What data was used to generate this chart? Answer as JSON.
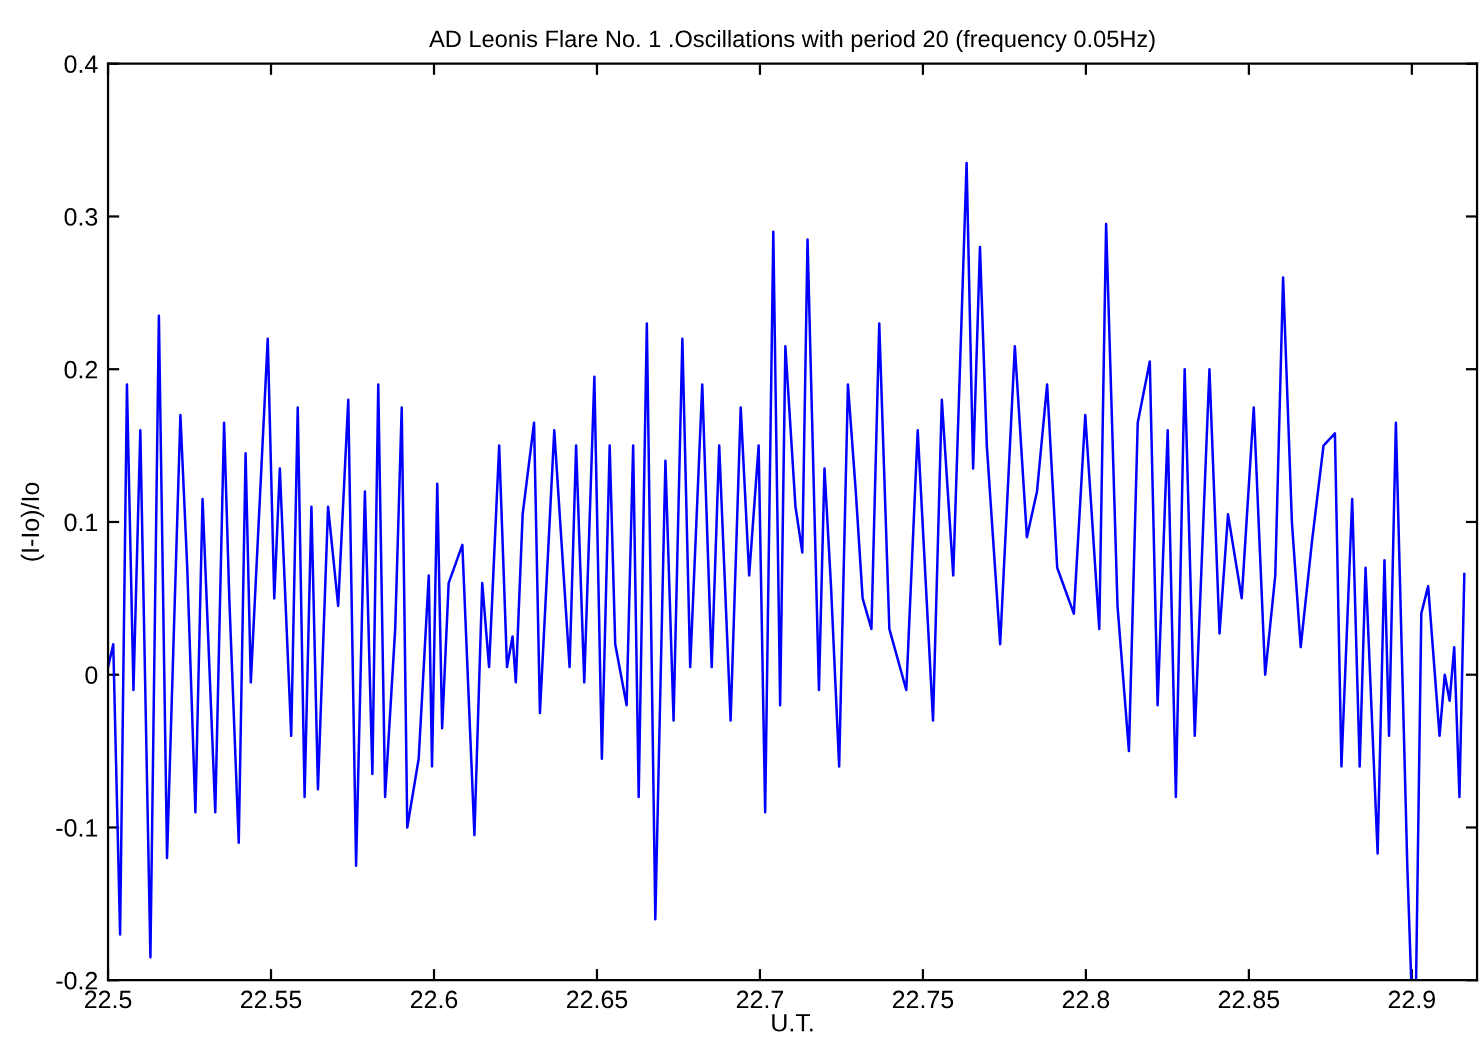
{
  "chart_data": {
    "type": "line",
    "title": "AD Leonis Flare No. 1 .Oscillations with period 20 (frequency 0.05Hz)",
    "xlabel": "U.T.",
    "ylabel": "(I-Io)/Io",
    "x": [
      22.5,
      22.5016,
      22.5037,
      22.5058,
      22.5078,
      22.5099,
      22.513,
      22.5156,
      22.5181,
      22.5222,
      22.5243,
      22.5268,
      22.529,
      22.5329,
      22.5356,
      22.5372,
      22.5401,
      22.5422,
      22.5438,
      22.549,
      22.551,
      22.5527,
      22.5562,
      22.5582,
      22.5603,
      22.5624,
      22.5644,
      22.5675,
      22.5706,
      22.5737,
      22.5761,
      22.5788,
      22.5811,
      22.5829,
      22.585,
      22.5881,
      22.5901,
      22.5918,
      22.5953,
      22.5984,
      22.5994,
      22.601,
      22.6025,
      22.6045,
      22.6087,
      22.6124,
      22.6148,
      22.6169,
      22.62,
      22.6224,
      22.6241,
      22.6251,
      22.6272,
      22.6307,
      22.6325,
      22.6369,
      22.6416,
      22.6436,
      22.6461,
      22.6492,
      22.6515,
      22.6539,
      22.6556,
      22.6591,
      22.6611,
      22.6628,
      22.6653,
      22.6679,
      22.671,
      22.6735,
      22.6762,
      22.6786,
      22.6823,
      22.6852,
      22.6875,
      22.691,
      22.6941,
      22.6967,
      22.6996,
      22.7016,
      22.7041,
      22.7062,
      22.7078,
      22.7109,
      22.713,
      22.7146,
      22.7181,
      22.7198,
      22.7218,
      22.7243,
      22.727,
      22.7294,
      22.7315,
      22.7342,
      22.7366,
      22.7397,
      22.7449,
      22.7484,
      22.7531,
      22.7558,
      22.7593,
      22.7634,
      22.7654,
      22.7675,
      22.7696,
      22.7737,
      22.7782,
      22.7819,
      22.785,
      22.7881,
      22.7912,
      22.7963,
      22.7998,
      22.8041,
      22.8062,
      22.8097,
      22.8132,
      22.8159,
      22.8196,
      22.822,
      22.8251,
      22.8276,
      22.8303,
      22.8334,
      22.8379,
      22.841,
      22.8436,
      22.8478,
      22.8515,
      22.855,
      22.8581,
      22.8605,
      22.8632,
      22.8659,
      22.8694,
      22.8729,
      22.8764,
      22.8784,
      22.8817,
      22.884,
      22.8858,
      22.8895,
      22.8916,
      22.893,
      22.8951,
      22.8986,
      22.8998,
      22.9013,
      22.9029,
      22.905,
      22.9085,
      22.9101,
      22.9116,
      22.913,
      22.9146,
      22.9161
    ],
    "series": [
      {
        "color": "#0000ff",
        "values": [
          0.005,
          0.02,
          -0.17,
          0.19,
          -0.01,
          0.16,
          -0.185,
          0.235,
          -0.12,
          0.17,
          0.07,
          -0.09,
          0.115,
          -0.09,
          0.165,
          0.05,
          -0.11,
          0.145,
          -0.005,
          0.22,
          0.05,
          0.135,
          -0.04,
          0.175,
          -0.08,
          0.11,
          -0.075,
          0.11,
          0.045,
          0.18,
          -0.125,
          0.12,
          -0.065,
          0.19,
          -0.08,
          0.03,
          0.175,
          -0.1,
          -0.055,
          0.065,
          -0.06,
          0.125,
          -0.035,
          0.06,
          0.085,
          -0.105,
          0.06,
          0.005,
          0.15,
          0.005,
          0.025,
          -0.005,
          0.105,
          0.165,
          -0.025,
          0.16,
          0.005,
          0.15,
          -0.005,
          0.195,
          -0.055,
          0.15,
          0.02,
          -0.02,
          0.15,
          -0.08,
          0.23,
          -0.16,
          0.14,
          -0.03,
          0.22,
          0.005,
          0.19,
          0.005,
          0.15,
          -0.03,
          0.175,
          0.065,
          0.15,
          -0.09,
          0.29,
          -0.02,
          0.215,
          0.11,
          0.08,
          0.285,
          -0.01,
          0.135,
          0.058,
          -0.06,
          0.19,
          0.12,
          0.05,
          0.03,
          0.23,
          0.03,
          -0.01,
          0.16,
          -0.03,
          0.18,
          0.065,
          0.335,
          0.135,
          0.28,
          0.15,
          0.02,
          0.215,
          0.09,
          0.12,
          0.19,
          0.07,
          0.04,
          0.17,
          0.03,
          0.295,
          0.045,
          -0.05,
          0.165,
          0.205,
          -0.02,
          0.16,
          -0.08,
          0.2,
          -0.04,
          0.2,
          0.027,
          0.105,
          0.05,
          0.175,
          0,
          0.065,
          0.26,
          0.1,
          0.018,
          0.088,
          0.15,
          0.158,
          -0.06,
          0.115,
          -0.06,
          0.07,
          -0.117,
          0.075,
          -0.04,
          0.165,
          -0.125,
          -0.2,
          -0.2,
          0.04,
          0.058,
          -0.04,
          0,
          -0.017,
          0.018,
          -0.08,
          0.066
        ]
      }
    ],
    "xlim": [
      22.5,
      22.92
    ],
    "ylim": [
      -0.2,
      0.4
    ],
    "xticks": [
      22.5,
      22.55,
      22.6,
      22.65,
      22.7,
      22.75,
      22.8,
      22.85,
      22.9
    ],
    "yticks": [
      -0.2,
      -0.1,
      0,
      0.1,
      0.2,
      0.3,
      0.4
    ],
    "grid": false,
    "legend": false,
    "marker": "none",
    "line_style": "solid"
  }
}
